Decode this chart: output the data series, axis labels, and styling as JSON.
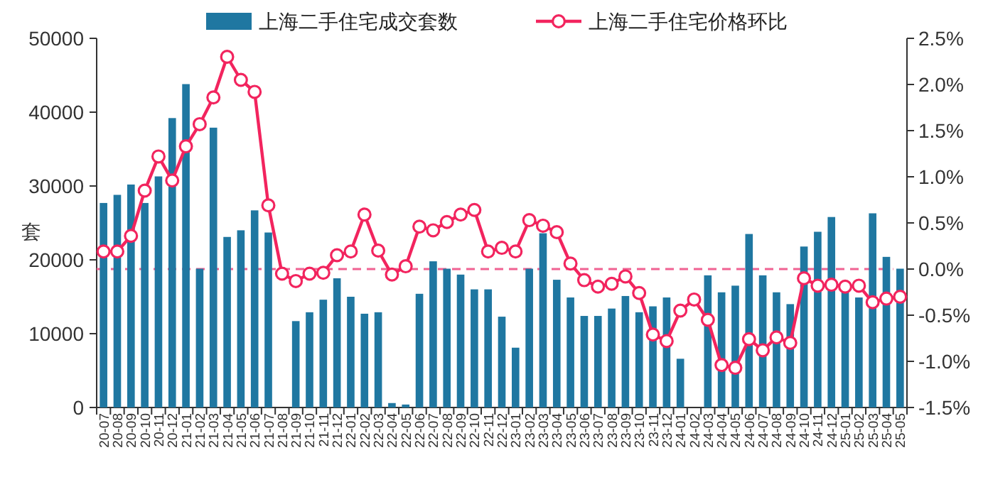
{
  "chart_data": {
    "type": "bar",
    "ylabel": "套",
    "categories": [
      "20-07",
      "20-08",
      "20-09",
      "20-10",
      "20-11",
      "20-12",
      "21-01",
      "21-02",
      "21-03",
      "21-04",
      "21-05",
      "21-06",
      "21-07",
      "21-08",
      "21-09",
      "21-10",
      "21-11",
      "21-12",
      "22-01",
      "22-02",
      "22-03",
      "22-04",
      "22-05",
      "22-06",
      "22-07",
      "22-08",
      "22-09",
      "22-10",
      "22-11",
      "22-12",
      "23-01",
      "23-02",
      "23-03",
      "23-04",
      "23-05",
      "23-06",
      "23-07",
      "23-08",
      "23-09",
      "23-10",
      "23-11",
      "23-12",
      "24-01",
      "24-02",
      "24-03",
      "24-04",
      "24-05",
      "24-06",
      "24-07",
      "24-08",
      "24-09",
      "24-10",
      "24-11",
      "24-12",
      "25-01",
      "25-02",
      "25-03",
      "25-04",
      "25-05"
    ],
    "series": [
      {
        "name": "上海二手住宅成交套数",
        "color": "#1f77a1",
        "values": [
          27700,
          28800,
          30200,
          27700,
          31300,
          39200,
          43800,
          18800,
          37900,
          23100,
          24000,
          26700,
          23700,
          null,
          11700,
          12900,
          14600,
          17500,
          15000,
          12700,
          12900,
          600,
          400,
          15400,
          19800,
          18800,
          18000,
          16000,
          16000,
          12300,
          8100,
          18800,
          23600,
          17300,
          14900,
          12400,
          12400,
          13400,
          15100,
          12900,
          13700,
          14900,
          6600,
          null,
          17900,
          15600,
          16500,
          23500,
          17900,
          15600,
          14000,
          21800,
          23800,
          25800,
          16000,
          14900,
          26300,
          20400,
          18800
        ]
      },
      {
        "name": "上海二手住宅价格环比",
        "type": "line",
        "axis": "y2",
        "color": "#f2245e",
        "marker": "circle",
        "values": [
          0.19,
          0.19,
          0.36,
          0.85,
          1.22,
          0.96,
          1.33,
          1.57,
          1.86,
          2.3,
          2.05,
          1.92,
          0.69,
          -0.05,
          -0.13,
          -0.05,
          -0.04,
          0.15,
          0.19,
          0.59,
          0.2,
          -0.06,
          0.03,
          0.46,
          0.42,
          0.51,
          0.59,
          0.64,
          0.19,
          0.23,
          0.19,
          0.53,
          0.47,
          0.4,
          0.06,
          -0.12,
          -0.19,
          -0.16,
          -0.08,
          -0.26,
          -0.71,
          -0.78,
          -0.45,
          -0.33,
          -0.55,
          -1.04,
          -1.07,
          -0.76,
          -0.88,
          -0.74,
          -0.8,
          -0.1,
          -0.18,
          -0.17,
          -0.19,
          -0.18,
          -0.36,
          -0.32,
          -0.3
        ]
      }
    ],
    "ylim": [
      0,
      50000
    ],
    "yticks": [
      0,
      10000,
      20000,
      30000,
      40000,
      50000
    ],
    "y2lim": [
      -1.5,
      2.5
    ],
    "y2ticks": [
      {
        "value": -1.5,
        "label": "-1.5%"
      },
      {
        "value": -1.0,
        "label": "-1.0%"
      },
      {
        "value": -0.5,
        "label": "-0.5%"
      },
      {
        "value": 0.0,
        "label": "0.0%"
      },
      {
        "value": 0.5,
        "label": "0.5%"
      },
      {
        "value": 1.0,
        "label": "1.0%"
      },
      {
        "value": 1.5,
        "label": "1.5%"
      },
      {
        "value": 2.0,
        "label": "2.0%"
      },
      {
        "value": 2.5,
        "label": "2.5%"
      }
    ],
    "ref_lines": [
      {
        "axis": "y2",
        "value": 0,
        "color": "#f06292",
        "line_style": "dashed"
      }
    ],
    "legend": "top"
  }
}
